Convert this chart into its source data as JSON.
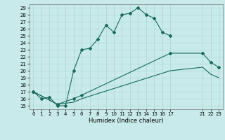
{
  "title": "",
  "xlabel": "Humidex (Indice chaleur)",
  "bg_color": "#c8eaea",
  "grid_color": "#a8d0d0",
  "line_color": "#1a6b5a",
  "ylim": [
    14.5,
    29.5
  ],
  "xlim": [
    -0.5,
    23.5
  ],
  "yticks": [
    15,
    16,
    17,
    18,
    19,
    20,
    21,
    22,
    23,
    24,
    25,
    26,
    27,
    28,
    29
  ],
  "xtick_vals": [
    0,
    1,
    2,
    3,
    4,
    5,
    6,
    7,
    8,
    9,
    10,
    11,
    12,
    13,
    14,
    15,
    16,
    17,
    21,
    22,
    23
  ],
  "xtick_labels": [
    "0",
    "1",
    "2",
    "3",
    "4",
    "5",
    "6",
    "7",
    "8",
    "9",
    "10",
    "11",
    "12",
    "13",
    "14",
    "15",
    "16",
    "17",
    "21",
    "22",
    "23"
  ],
  "line1_x": [
    0,
    1,
    2,
    3,
    4,
    5,
    6,
    7,
    8,
    9,
    10,
    11,
    12,
    13,
    14,
    15,
    16,
    17
  ],
  "line1_y": [
    17.0,
    16.0,
    16.2,
    15.0,
    15.0,
    20.0,
    23.0,
    23.2,
    24.5,
    26.5,
    25.5,
    28.0,
    28.2,
    29.0,
    28.0,
    27.5,
    25.5,
    25.0
  ],
  "line2_x": [
    0,
    3,
    5,
    6,
    17,
    21,
    22,
    23
  ],
  "line2_y": [
    17.0,
    15.2,
    16.0,
    16.5,
    22.5,
    22.5,
    21.2,
    20.5
  ],
  "line3_x": [
    0,
    3,
    5,
    6,
    17,
    21,
    22,
    23
  ],
  "line3_y": [
    17.0,
    15.2,
    15.5,
    16.0,
    20.0,
    20.5,
    19.5,
    19.0
  ],
  "marker_size": 2.0,
  "line_width": 0.8,
  "tick_fontsize": 5.0,
  "xlabel_fontsize": 6.0
}
